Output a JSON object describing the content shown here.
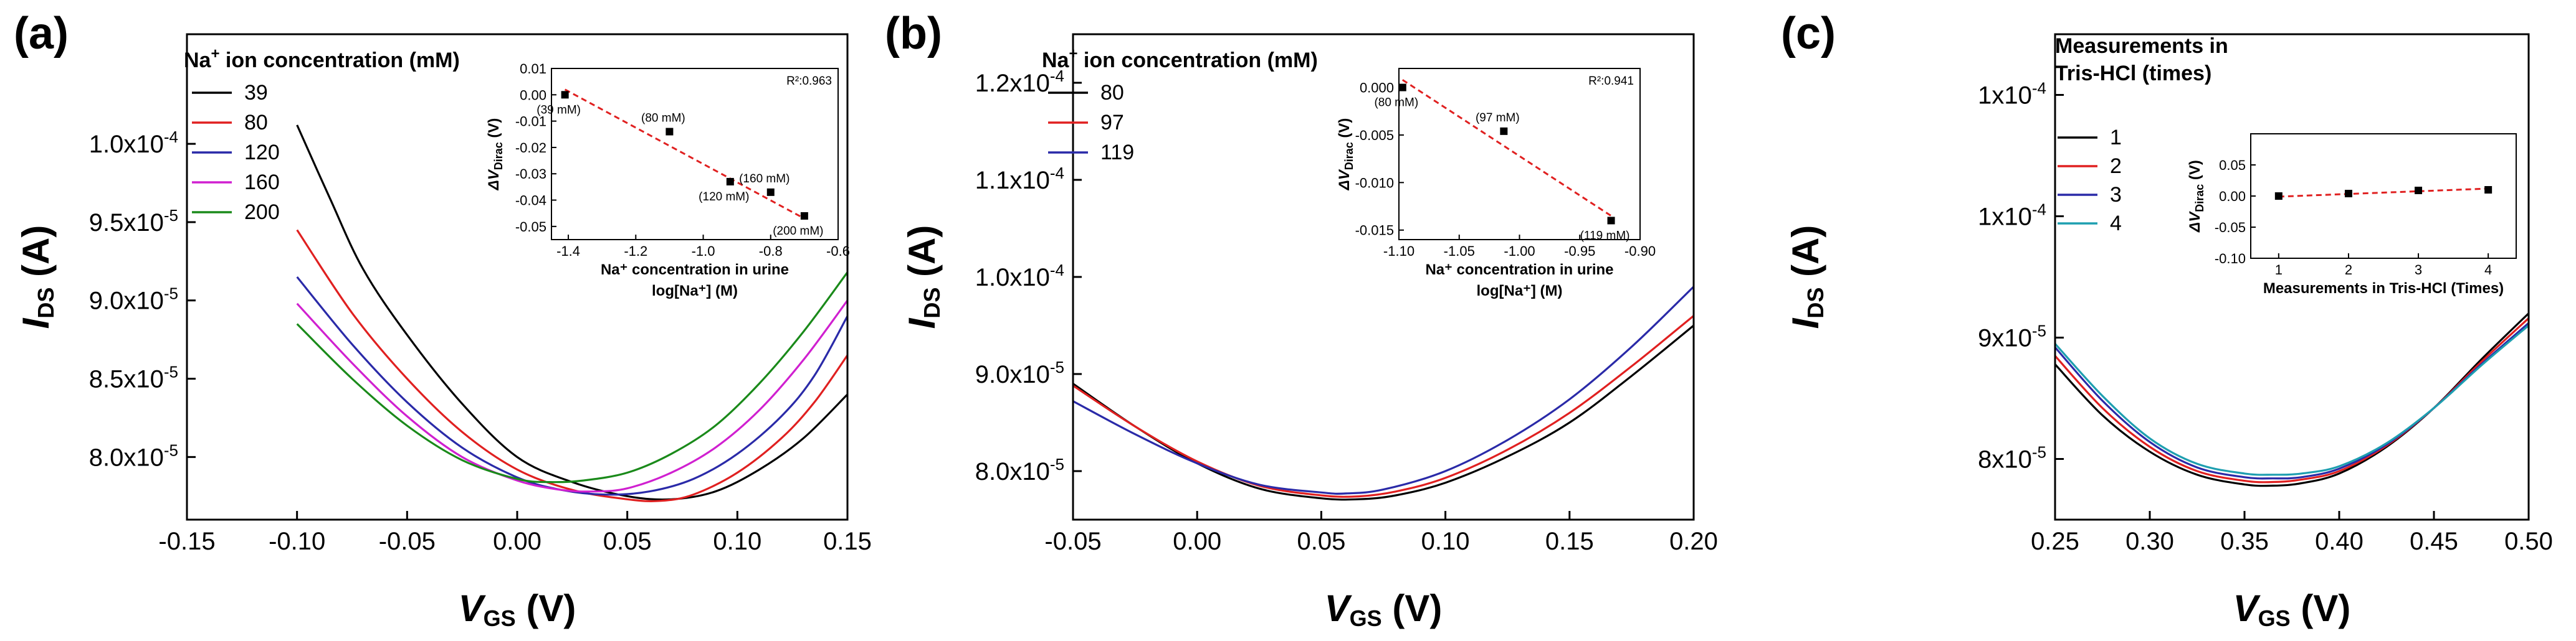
{
  "chart_data": [
    {
      "type": "line",
      "panel_label": "(a)",
      "xlabel": {
        "main": "V",
        "sub": "GS",
        "unit": "(V)"
      },
      "ylabel": {
        "main": "I",
        "sub": "DS",
        "unit": "(A)"
      },
      "xlim": [
        -0.15,
        0.15
      ],
      "ylim": [
        7.6e-05,
        0.000107
      ],
      "xticks": [
        -0.15,
        -0.1,
        -0.05,
        0.0,
        0.05,
        0.1,
        0.15
      ],
      "xtick_labels": [
        "-0.15",
        "-0.10",
        "-0.05",
        "0.00",
        "0.05",
        "0.10",
        "0.15"
      ],
      "yticks": [
        8e-05,
        8.5e-05,
        9e-05,
        9.5e-05,
        0.0001
      ],
      "ytick_labels": [
        {
          "m": "8.0x10",
          "e": "-5"
        },
        {
          "m": "8.5x10",
          "e": "-5"
        },
        {
          "m": "9.0x10",
          "e": "-5"
        },
        {
          "m": "9.5x10",
          "e": "-5"
        },
        {
          "m": "1.0x10",
          "e": "-4"
        }
      ],
      "legend": {
        "title_pre": "Na",
        "title_sup": "+",
        "title_post": " ion concentration (mM)"
      },
      "series": [
        {
          "name": "39",
          "color": "#000000",
          "x": [
            -0.1,
            -0.085,
            -0.07,
            -0.05,
            -0.025,
            0.0,
            0.025,
            0.05,
            0.07,
            0.09,
            0.11,
            0.13,
            0.15
          ],
          "y": [
            0.0001012,
            9.65e-05,
            9.2e-05,
            8.78e-05,
            8.34e-05,
            8e-05,
            7.84e-05,
            7.75e-05,
            7.73e-05,
            7.78e-05,
            7.92e-05,
            8.12e-05,
            8.4e-05
          ]
        },
        {
          "name": "80",
          "color": "#e02020",
          "x": [
            -0.1,
            -0.075,
            -0.05,
            -0.025,
            0.0,
            0.025,
            0.05,
            0.065,
            0.08,
            0.1,
            0.12,
            0.135,
            0.15
          ],
          "y": [
            9.45e-05,
            8.92e-05,
            8.5e-05,
            8.16e-05,
            7.92e-05,
            7.79e-05,
            7.73e-05,
            7.72e-05,
            7.76e-05,
            7.9e-05,
            8.12e-05,
            8.35e-05,
            8.65e-05
          ]
        },
        {
          "name": "120",
          "color": "#2a2aa8",
          "x": [
            -0.1,
            -0.075,
            -0.05,
            -0.025,
            0.0,
            0.02,
            0.04,
            0.06,
            0.08,
            0.1,
            0.12,
            0.135,
            0.15
          ],
          "y": [
            9.15e-05,
            8.72e-05,
            8.35e-05,
            8.06e-05,
            7.87e-05,
            7.79e-05,
            7.76e-05,
            7.78e-05,
            7.86e-05,
            8.02e-05,
            8.26e-05,
            8.52e-05,
            8.9e-05
          ]
        },
        {
          "name": "160",
          "color": "#d020d0",
          "x": [
            -0.1,
            -0.075,
            -0.05,
            -0.025,
            0.0,
            0.02,
            0.035,
            0.05,
            0.07,
            0.09,
            0.11,
            0.13,
            0.15
          ],
          "y": [
            8.98e-05,
            8.6e-05,
            8.26e-05,
            8e-05,
            7.85e-05,
            7.79e-05,
            7.78e-05,
            7.8e-05,
            7.9e-05,
            8.06e-05,
            8.3e-05,
            8.62e-05,
            9e-05
          ]
        },
        {
          "name": "200",
          "color": "#1a8a1a",
          "x": [
            -0.1,
            -0.075,
            -0.05,
            -0.025,
            0.0,
            0.015,
            0.03,
            0.05,
            0.07,
            0.09,
            0.11,
            0.13,
            0.15
          ],
          "y": [
            8.85e-05,
            8.5e-05,
            8.2e-05,
            7.98e-05,
            7.86e-05,
            7.84e-05,
            7.85e-05,
            7.9e-05,
            8.02e-05,
            8.2e-05,
            8.47e-05,
            8.8e-05,
            9.18e-05
          ]
        }
      ],
      "inset": {
        "xlabel_line1": "Na⁺ concentration in urine",
        "xlabel_line2": "log[Na⁺] (M)",
        "ylabel": "ΔV_Dirac (V)",
        "ylabel_main": "ΔV",
        "ylabel_sub": "Dirac",
        "ylabel_unit": "(V)",
        "xlim": [
          -1.45,
          -0.6
        ],
        "ylim": [
          -0.055,
          0.01
        ],
        "xticks": [
          -1.4,
          -1.2,
          -1.0,
          -0.8,
          -0.6
        ],
        "xtick_labels": [
          "-1.4",
          "-1.2",
          "-1.0",
          "-0.8",
          "-0.6"
        ],
        "yticks": [
          0.01,
          0.0,
          -0.01,
          -0.02,
          -0.03,
          -0.04,
          -0.05
        ],
        "ytick_labels": [
          "0.01",
          "0.00",
          "-0.01",
          "-0.02",
          "-0.03",
          "-0.04",
          "-0.05"
        ],
        "r2": "R²:0.963",
        "points": [
          {
            "x": -1.41,
            "y": 0.0,
            "label": "(39 mM)"
          },
          {
            "x": -1.1,
            "y": -0.014,
            "label": "(80 mM)"
          },
          {
            "x": -0.92,
            "y": -0.033,
            "label": "(120 mM)"
          },
          {
            "x": -0.8,
            "y": -0.037,
            "label": "(160 mM)"
          },
          {
            "x": -0.7,
            "y": -0.046,
            "label": "(200 mM)"
          }
        ],
        "fit": {
          "x": [
            -1.41,
            -0.7
          ],
          "y": [
            0.002,
            -0.047
          ]
        }
      }
    },
    {
      "type": "line",
      "panel_label": "(b)",
      "xlabel": {
        "main": "V",
        "sub": "GS",
        "unit": "(V)"
      },
      "ylabel": {
        "main": "I",
        "sub": "DS",
        "unit": "(A)"
      },
      "xlim": [
        -0.05,
        0.2
      ],
      "ylim": [
        7.5e-05,
        0.000125
      ],
      "xticks": [
        -0.05,
        0.0,
        0.05,
        0.1,
        0.15,
        0.2
      ],
      "xtick_labels": [
        "-0.05",
        "0.00",
        "0.05",
        "0.10",
        "0.15",
        "0.20"
      ],
      "yticks": [
        8e-05,
        9e-05,
        0.0001,
        0.00011,
        0.00012
      ],
      "ytick_labels": [
        {
          "m": "8.0x10",
          "e": "-5"
        },
        {
          "m": "9.0x10",
          "e": "-5"
        },
        {
          "m": "1.0x10",
          "e": "-4"
        },
        {
          "m": "1.1x10",
          "e": "-4"
        },
        {
          "m": "1.2x10",
          "e": "-4"
        }
      ],
      "legend": {
        "title_pre": "Na",
        "title_sup": "+",
        "title_post": " ion concentration (mM)"
      },
      "series": [
        {
          "name": "80",
          "color": "#000000",
          "x": [
            -0.05,
            -0.025,
            0.0,
            0.025,
            0.05,
            0.065,
            0.08,
            0.1,
            0.125,
            0.15,
            0.175,
            0.2
          ],
          "y": [
            8.9e-05,
            8.46e-05,
            8.08e-05,
            7.82e-05,
            7.72e-05,
            7.71e-05,
            7.75e-05,
            7.88e-05,
            8.15e-05,
            8.5e-05,
            8.98e-05,
            9.5e-05
          ]
        },
        {
          "name": "97",
          "color": "#e02020",
          "x": [
            -0.05,
            -0.025,
            0.0,
            0.025,
            0.05,
            0.065,
            0.08,
            0.1,
            0.125,
            0.15,
            0.175,
            0.2
          ],
          "y": [
            8.88e-05,
            8.46e-05,
            8.1e-05,
            7.85e-05,
            7.75e-05,
            7.74e-05,
            7.79e-05,
            7.93e-05,
            8.22e-05,
            8.6e-05,
            9.08e-05,
            9.6e-05
          ]
        },
        {
          "name": "119",
          "color": "#2a2aa8",
          "x": [
            -0.05,
            -0.025,
            0.0,
            0.025,
            0.05,
            0.06,
            0.075,
            0.1,
            0.125,
            0.15,
            0.175,
            0.2
          ],
          "y": [
            8.72e-05,
            8.38e-05,
            8.08e-05,
            7.86e-05,
            7.78e-05,
            7.77e-05,
            7.81e-05,
            8e-05,
            8.32e-05,
            8.74e-05,
            9.28e-05,
            9.9e-05
          ]
        }
      ],
      "inset": {
        "xlabel_line1": "Na⁺ concentration in urine",
        "xlabel_line2": "log[Na⁺] (M)",
        "ylabel": "ΔV_Dirac (V)",
        "ylabel_main": "ΔV",
        "ylabel_sub": "Dirac",
        "ylabel_unit": "(V)",
        "xlim": [
          -1.1,
          -0.9
        ],
        "ylim": [
          -0.016,
          0.002
        ],
        "xticks": [
          -1.1,
          -1.05,
          -1.0,
          -0.95,
          -0.9
        ],
        "xtick_labels": [
          "-1.10",
          "-1.05",
          "-1.00",
          "-0.95",
          "-0.90"
        ],
        "yticks": [
          0.0,
          -0.005,
          -0.01,
          -0.015
        ],
        "ytick_labels": [
          "0.000",
          "-0.005",
          "-0.010",
          "-0.015"
        ],
        "r2": "R²:0.941",
        "points": [
          {
            "x": -1.097,
            "y": 0.0,
            "label": "(80 mM)"
          },
          {
            "x": -1.013,
            "y": -0.0046,
            "label": "(97 mM)"
          },
          {
            "x": -0.924,
            "y": -0.014,
            "label": "(119 mM)"
          }
        ],
        "fit": {
          "x": [
            -1.097,
            -0.924
          ],
          "y": [
            0.0008,
            -0.0135
          ]
        }
      }
    },
    {
      "type": "line",
      "panel_label": "(c)",
      "xlabel": {
        "main": "V",
        "sub": "GS",
        "unit": "(V)"
      },
      "ylabel": {
        "main": "I",
        "sub": "DS",
        "unit": "(A)"
      },
      "xlim": [
        0.25,
        0.5
      ],
      "ylim": [
        7.5e-05,
        0.000115
      ],
      "xticks": [
        0.25,
        0.3,
        0.35,
        0.4,
        0.45,
        0.5
      ],
      "xtick_labels": [
        "0.25",
        "0.30",
        "0.35",
        "0.40",
        "0.45",
        "0.50"
      ],
      "yticks": [
        8e-05,
        9e-05,
        0.0001,
        0.00011
      ],
      "ytick_labels": [
        {
          "m": "8x10",
          "e": "-5"
        },
        {
          "m": "9x10",
          "e": "-5"
        },
        {
          "m": "1x10",
          "e": "-4"
        },
        {
          "m": "1x10",
          "e": "-4"
        }
      ],
      "legend": {
        "title_line1": "Measurements in",
        "title_line2": "Tris-HCl (times)"
      },
      "series": [
        {
          "name": "1",
          "color": "#000000",
          "x": [
            0.25,
            0.275,
            0.3,
            0.325,
            0.35,
            0.365,
            0.38,
            0.4,
            0.425,
            0.45,
            0.475,
            0.5
          ],
          "y": [
            8.78e-05,
            8.36e-05,
            8.06e-05,
            7.87e-05,
            7.79e-05,
            7.78e-05,
            7.8e-05,
            7.88e-05,
            8.1e-05,
            8.42e-05,
            8.82e-05,
            9.2e-05
          ]
        },
        {
          "name": "2",
          "color": "#e02020",
          "x": [
            0.25,
            0.275,
            0.3,
            0.325,
            0.35,
            0.365,
            0.38,
            0.4,
            0.425,
            0.45,
            0.475,
            0.5
          ],
          "y": [
            8.85e-05,
            8.42e-05,
            8.1e-05,
            7.9e-05,
            7.82e-05,
            7.81e-05,
            7.83e-05,
            7.9e-05,
            8.11e-05,
            8.42e-05,
            8.8e-05,
            9.16e-05
          ]
        },
        {
          "name": "3",
          "color": "#2a2aa8",
          "x": [
            0.25,
            0.275,
            0.3,
            0.325,
            0.35,
            0.365,
            0.38,
            0.4,
            0.425,
            0.45,
            0.475,
            0.5
          ],
          "y": [
            8.92e-05,
            8.48e-05,
            8.14e-05,
            7.93e-05,
            7.85e-05,
            7.84e-05,
            7.85e-05,
            7.92e-05,
            8.12e-05,
            8.42e-05,
            8.78e-05,
            9.12e-05
          ]
        },
        {
          "name": "4",
          "color": "#1e9fb0",
          "x": [
            0.25,
            0.275,
            0.3,
            0.325,
            0.35,
            0.365,
            0.38,
            0.4,
            0.425,
            0.45,
            0.475,
            0.5
          ],
          "y": [
            8.95e-05,
            8.52e-05,
            8.17e-05,
            7.96e-05,
            7.88e-05,
            7.87e-05,
            7.88e-05,
            7.94e-05,
            8.13e-05,
            8.42e-05,
            8.77e-05,
            9.1e-05
          ]
        }
      ],
      "inset": {
        "xlabel_line1": "Measurements in Tris-HCl (Times)",
        "ylabel": "ΔV_Dirac (V)",
        "ylabel_main": "ΔV",
        "ylabel_sub": "Dirac",
        "ylabel_unit": "(V)",
        "xlim": [
          0.6,
          4.4
        ],
        "ylim": [
          -0.1,
          0.1
        ],
        "xticks": [
          1,
          2,
          3,
          4
        ],
        "xtick_labels": [
          "1",
          "2",
          "3",
          "4"
        ],
        "yticks": [
          0.05,
          0.0,
          -0.05,
          -0.1
        ],
        "ytick_labels": [
          "0.05",
          "0.00",
          "-0.05",
          "-0.10"
        ],
        "points": [
          {
            "x": 1,
            "y": 0.0
          },
          {
            "x": 2,
            "y": 0.004
          },
          {
            "x": 3,
            "y": 0.009
          },
          {
            "x": 4,
            "y": 0.01
          }
        ],
        "fit": {
          "x": [
            1,
            4
          ],
          "y": [
            -0.001,
            0.012
          ]
        }
      }
    }
  ]
}
